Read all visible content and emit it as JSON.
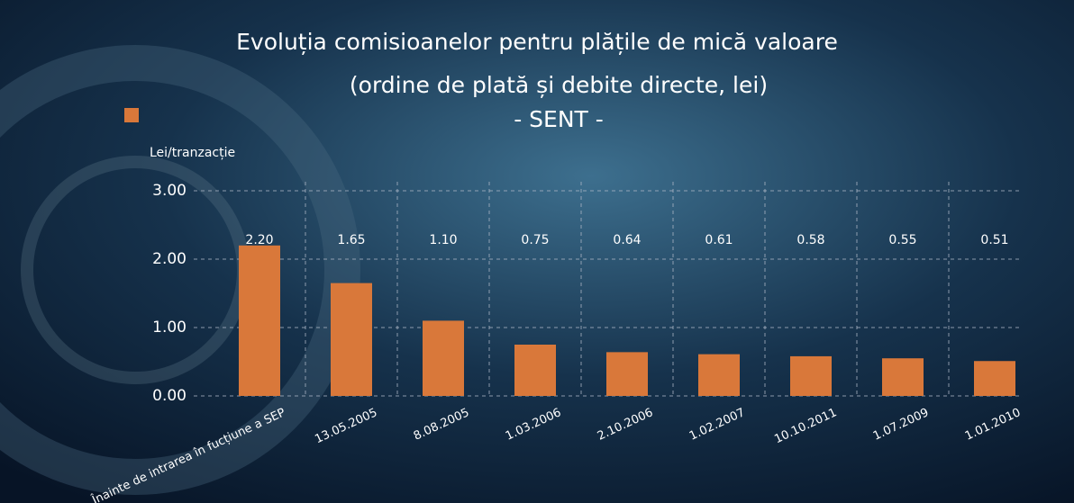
{
  "chart_data": {
    "type": "bar",
    "title": "Evoluția comisioanelor pentru plățile de mică valoare",
    "subtitle": "(ordine de plată și debite directe, lei)",
    "subtitle2": "- SENT -",
    "y_label": "Lei/tranzacție",
    "categories": [
      "Înainte de intrarea în fucțiune a SEP",
      "13.05.2005",
      "8.08.2005",
      "1.03.2006",
      "2.10.2006",
      "1.02.2007",
      "10.10.2011",
      "1.07.2009",
      "1.01.2010"
    ],
    "values": [
      2.2,
      1.65,
      1.1,
      0.75,
      0.64,
      0.61,
      0.58,
      0.55,
      0.51
    ],
    "value_labels": [
      "2.20",
      "1.65",
      "1.10",
      "0.75",
      "0.64",
      "0.61",
      "0.58",
      "0.55",
      "0.51"
    ],
    "color": "#d9783a",
    "ylim": [
      0,
      3
    ],
    "yticks": [
      {
        "value": 0,
        "label": "0.00"
      },
      {
        "value": 1,
        "label": "1.00"
      },
      {
        "value": 2,
        "label": "2.00"
      },
      {
        "value": 3,
        "label": "3.00"
      }
    ],
    "grid": true
  }
}
